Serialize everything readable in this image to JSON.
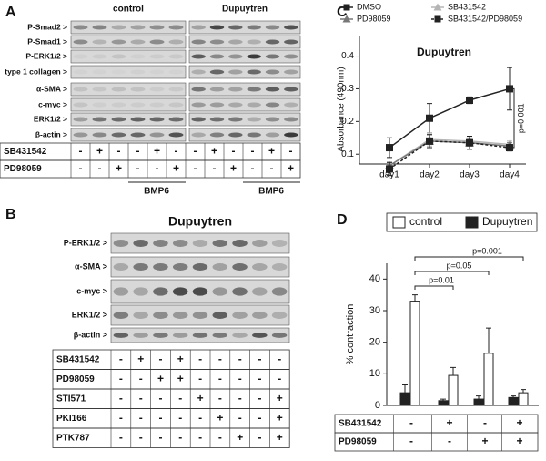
{
  "panel_labels": [
    "A",
    "B",
    "C",
    "D"
  ],
  "panel_a": {
    "groups": [
      "control",
      "Dupuytren"
    ],
    "blot_rows": [
      "P-Smad2 >",
      "P-Smad1 >",
      "P-ERK1/2 >",
      "type 1 collagen >",
      "α-SMA >",
      "c-myc >",
      "ERK1/2 >",
      "β-actin >"
    ],
    "treatments": [
      {
        "name": "SB431542",
        "cells": [
          "-",
          "+",
          "-",
          "-",
          "+",
          "-",
          "-",
          "+",
          "-",
          "-",
          "+",
          "-"
        ]
      },
      {
        "name": "PD98059",
        "cells": [
          "-",
          "-",
          "+",
          "-",
          "-",
          "+",
          "-",
          "-",
          "+",
          "-",
          "-",
          "+"
        ]
      }
    ],
    "brackets": [
      "BMP6",
      "BMP6"
    ]
  },
  "panel_b": {
    "title": "Dupuytren",
    "blot_rows": [
      "P-ERK1/2  >",
      "α-SMA  >",
      "c-myc  >",
      "ERK1/2  >",
      "β-actin  >"
    ],
    "treatments": [
      {
        "name": "SB431542",
        "cells": [
          "-",
          "+",
          "-",
          "+",
          "-",
          "-",
          "-",
          "-",
          "-"
        ]
      },
      {
        "name": "PD98059",
        "cells": [
          "-",
          "-",
          "+",
          "+",
          "-",
          "-",
          "-",
          "-",
          "-"
        ]
      },
      {
        "name": "STI571",
        "cells": [
          "-",
          "-",
          "-",
          "-",
          "+",
          "-",
          "-",
          "-",
          "+"
        ]
      },
      {
        "name": "PKI166",
        "cells": [
          "-",
          "-",
          "-",
          "-",
          "-",
          "+",
          "-",
          "-",
          "+"
        ]
      },
      {
        "name": "PTK787",
        "cells": [
          "-",
          "-",
          "-",
          "-",
          "-",
          "-",
          "+",
          "-",
          "+"
        ]
      }
    ]
  },
  "chart_data": [
    {
      "type": "line",
      "title": "Dupuytren",
      "y_label": "Absorbance (490nm)",
      "categories": [
        "day1",
        "day2",
        "day3",
        "day4"
      ],
      "ylim": [
        0.07,
        0.46
      ],
      "yticks": [
        0.1,
        0.2,
        0.3,
        0.4
      ],
      "series": [
        {
          "name": "DMSO",
          "color": "#222222",
          "marker": "square",
          "dashed": false,
          "values": [
            0.12,
            0.21,
            0.265,
            0.3
          ],
          "errors": [
            0.03,
            0.045,
            0.01,
            0.065
          ]
        },
        {
          "name": "SB431542",
          "color": "#b5b5b5",
          "marker": "triangle",
          "dashed": false,
          "values": [
            0.065,
            0.145,
            0.14,
            0.13
          ],
          "errors": [
            0.01,
            0.02,
            0.01,
            0.01
          ]
        },
        {
          "name": "PD98059",
          "color": "#777777",
          "marker": "triangle",
          "dashed": false,
          "values": [
            0.065,
            0.14,
            0.135,
            0.125
          ],
          "errors": [
            0.01,
            0.02,
            0.01,
            0.01
          ]
        },
        {
          "name": "SB431542/PD98059",
          "color": "#222222",
          "marker": "square",
          "dashed": true,
          "values": [
            0.055,
            0.14,
            0.135,
            0.12
          ],
          "errors": [
            0.02,
            0.02,
            0.02,
            0.01
          ]
        }
      ],
      "annotations": [
        "p=0.001"
      ]
    },
    {
      "type": "bar",
      "y_label": "% contraction",
      "ylim": [
        0,
        45
      ],
      "yticks": [
        0,
        10,
        20,
        30,
        40
      ],
      "series": [
        {
          "name": "control",
          "color": "#ffffff",
          "values": [
            33,
            9.5,
            16.5,
            4
          ],
          "errors": [
            2,
            2.5,
            8,
            1
          ]
        },
        {
          "name": "Dupuytren",
          "color": "#222222",
          "values": [
            4,
            1.5,
            2,
            2.5
          ],
          "errors": [
            2.5,
            0.5,
            1,
            0.5
          ]
        }
      ],
      "annotations": [
        "p=0.01",
        "p=0.05",
        "p=0.001"
      ],
      "treatments": [
        {
          "name": "SB431542",
          "cells": [
            "-",
            "+",
            "-",
            "+"
          ]
        },
        {
          "name": "PD98059",
          "cells": [
            "-",
            "-",
            "+",
            "+"
          ]
        }
      ]
    }
  ]
}
